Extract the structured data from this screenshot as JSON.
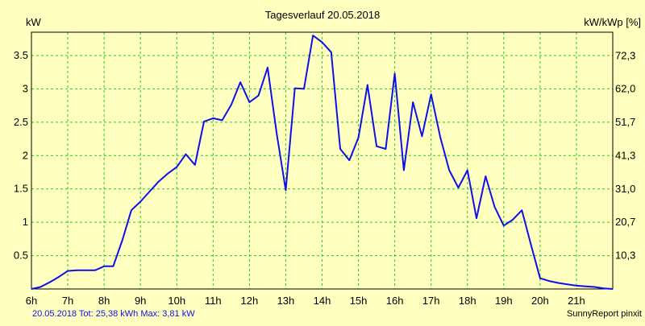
{
  "colors": {
    "background": "#ffffc0",
    "grid": "#22cc22",
    "line": "#1010e8",
    "text": "#000000",
    "footer_text": "#1010e8"
  },
  "chart_data": {
    "type": "line",
    "title": "Tagesverlauf 20.05.2018",
    "ylabel_left": "kW",
    "ylabel_right": "kW/kWp [%]",
    "grid": true,
    "x_ticks": [
      "6h",
      "7h",
      "8h",
      "9h",
      "10h",
      "11h",
      "12h",
      "13h",
      "14h",
      "15h",
      "16h",
      "17h",
      "18h",
      "19h",
      "20h",
      "21h"
    ],
    "x_range": [
      6.0,
      22.0
    ],
    "y_left_ticks": [
      "0.5",
      "1",
      "1.5",
      "2",
      "2.5",
      "3",
      "3.5"
    ],
    "y_left_range": [
      0,
      3.85
    ],
    "y_right_ticks": [
      "10,3",
      "20,7",
      "31,0",
      "41,3",
      "51,7",
      "62,0",
      "72,3"
    ],
    "y_right_range": [
      0,
      79.6
    ],
    "series": [
      {
        "x": [
          6.0,
          6.25,
          6.5,
          6.75,
          7.0,
          7.25,
          7.5,
          7.75,
          8.0,
          8.25,
          8.5,
          8.75,
          9.0,
          9.25,
          9.5,
          9.75,
          10.0,
          10.25,
          10.5,
          10.75,
          11.0,
          11.25,
          11.5,
          11.75,
          12.0,
          12.25,
          12.5,
          12.75,
          13.0,
          13.25,
          13.5,
          13.75,
          14.0,
          14.25,
          14.5,
          14.75,
          15.0,
          15.25,
          15.5,
          15.75,
          16.0,
          16.25,
          16.5,
          16.75,
          17.0,
          17.25,
          17.5,
          17.75,
          18.0,
          18.25,
          18.5,
          18.75,
          19.0,
          19.25,
          19.5,
          19.75,
          20.0,
          20.25,
          20.5,
          20.75,
          21.0,
          21.25,
          21.5,
          21.75,
          22.0
        ],
        "values": [
          0.0,
          0.03,
          0.1,
          0.18,
          0.27,
          0.28,
          0.28,
          0.28,
          0.34,
          0.34,
          0.73,
          1.18,
          1.31,
          1.46,
          1.61,
          1.73,
          1.83,
          2.02,
          1.86,
          2.51,
          2.56,
          2.53,
          2.76,
          3.1,
          2.8,
          2.9,
          3.32,
          2.33,
          1.48,
          3.01,
          3.0,
          3.8,
          3.7,
          3.55,
          2.1,
          1.93,
          2.27,
          3.06,
          2.14,
          2.1,
          3.23,
          1.78,
          2.8,
          2.29,
          2.92,
          2.28,
          1.78,
          1.52,
          1.78,
          1.06,
          1.69,
          1.23,
          0.95,
          1.04,
          1.18,
          0.66,
          0.16,
          0.12,
          0.09,
          0.07,
          0.05,
          0.04,
          0.03,
          0.01,
          0.0
        ]
      }
    ]
  },
  "footer": {
    "summary": "20.05.2018 Tot: 25,38 kWh Max: 3,81 kW",
    "brand": "SunnyReport pinxit"
  }
}
